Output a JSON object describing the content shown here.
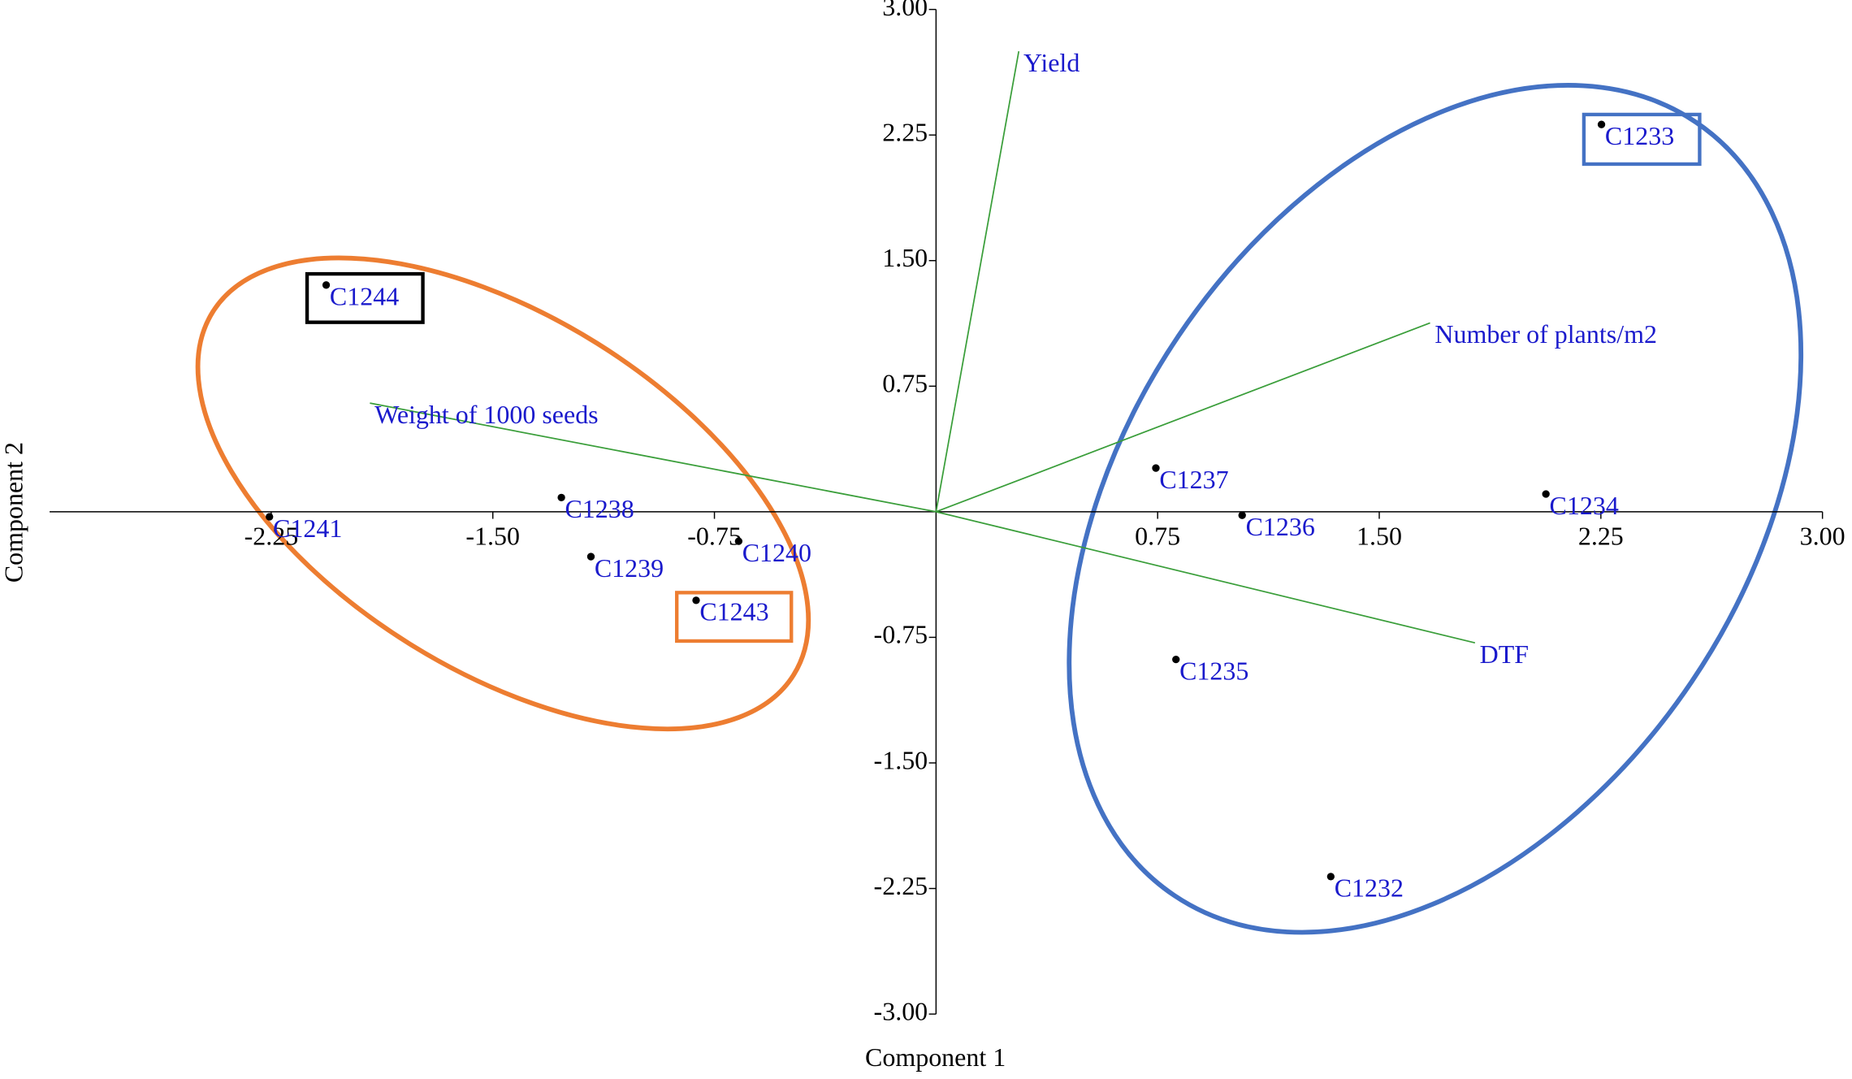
{
  "chart_data": {
    "type": "scatter",
    "xlabel": "Component 1",
    "ylabel": "Component 2",
    "labels": [
      "C1244",
      "C1241",
      "C1238",
      "C1239",
      "C1240",
      "C1243",
      "C1237",
      "C1236",
      "C1235",
      "C1234",
      "C1233",
      "C1232"
    ],
    "x": [
      -2.064,
      -2.256,
      -1.268,
      -1.168,
      -0.668,
      -0.812,
      0.744,
      1.036,
      0.812,
      2.064,
      2.252,
      1.336
    ],
    "y": [
      1.354,
      -0.03,
      0.085,
      -0.268,
      -0.176,
      -0.529,
      0.261,
      -0.021,
      -0.882,
      0.106,
      2.313,
      -2.179
    ],
    "point_color": "#000000",
    "label_color": "#1a1acc",
    "loadings": {
      "labels": [
        "Yield",
        "Number of plants/m2",
        "DTF",
        "Weight of 1000 seeds"
      ],
      "x": [
        0.28,
        1.672,
        1.824,
        -1.916
      ],
      "y": [
        2.75,
        1.128,
        -0.783,
        0.649
      ],
      "color": "#3a9e3a"
    },
    "xlim": [
      -3,
      3
    ],
    "ylim": [
      -3,
      3
    ],
    "xticks": [
      -2.25,
      {
        "value": -1.5,
        "label": "-1.50"
      },
      -0.75,
      0.75,
      {
        "value": 1.5,
        "label": "1.50"
      },
      2.25,
      {
        "value": 3,
        "label": "3.00"
      }
    ],
    "yticks": [
      {
        "value": 3,
        "label": "3.00"
      },
      2.25,
      {
        "value": 1.5,
        "label": "1.50"
      },
      0.75,
      -0.75,
      {
        "value": -1.5,
        "label": "-1.50"
      },
      -2.25,
      {
        "value": -3,
        "label": "-3.00"
      }
    ]
  }
}
